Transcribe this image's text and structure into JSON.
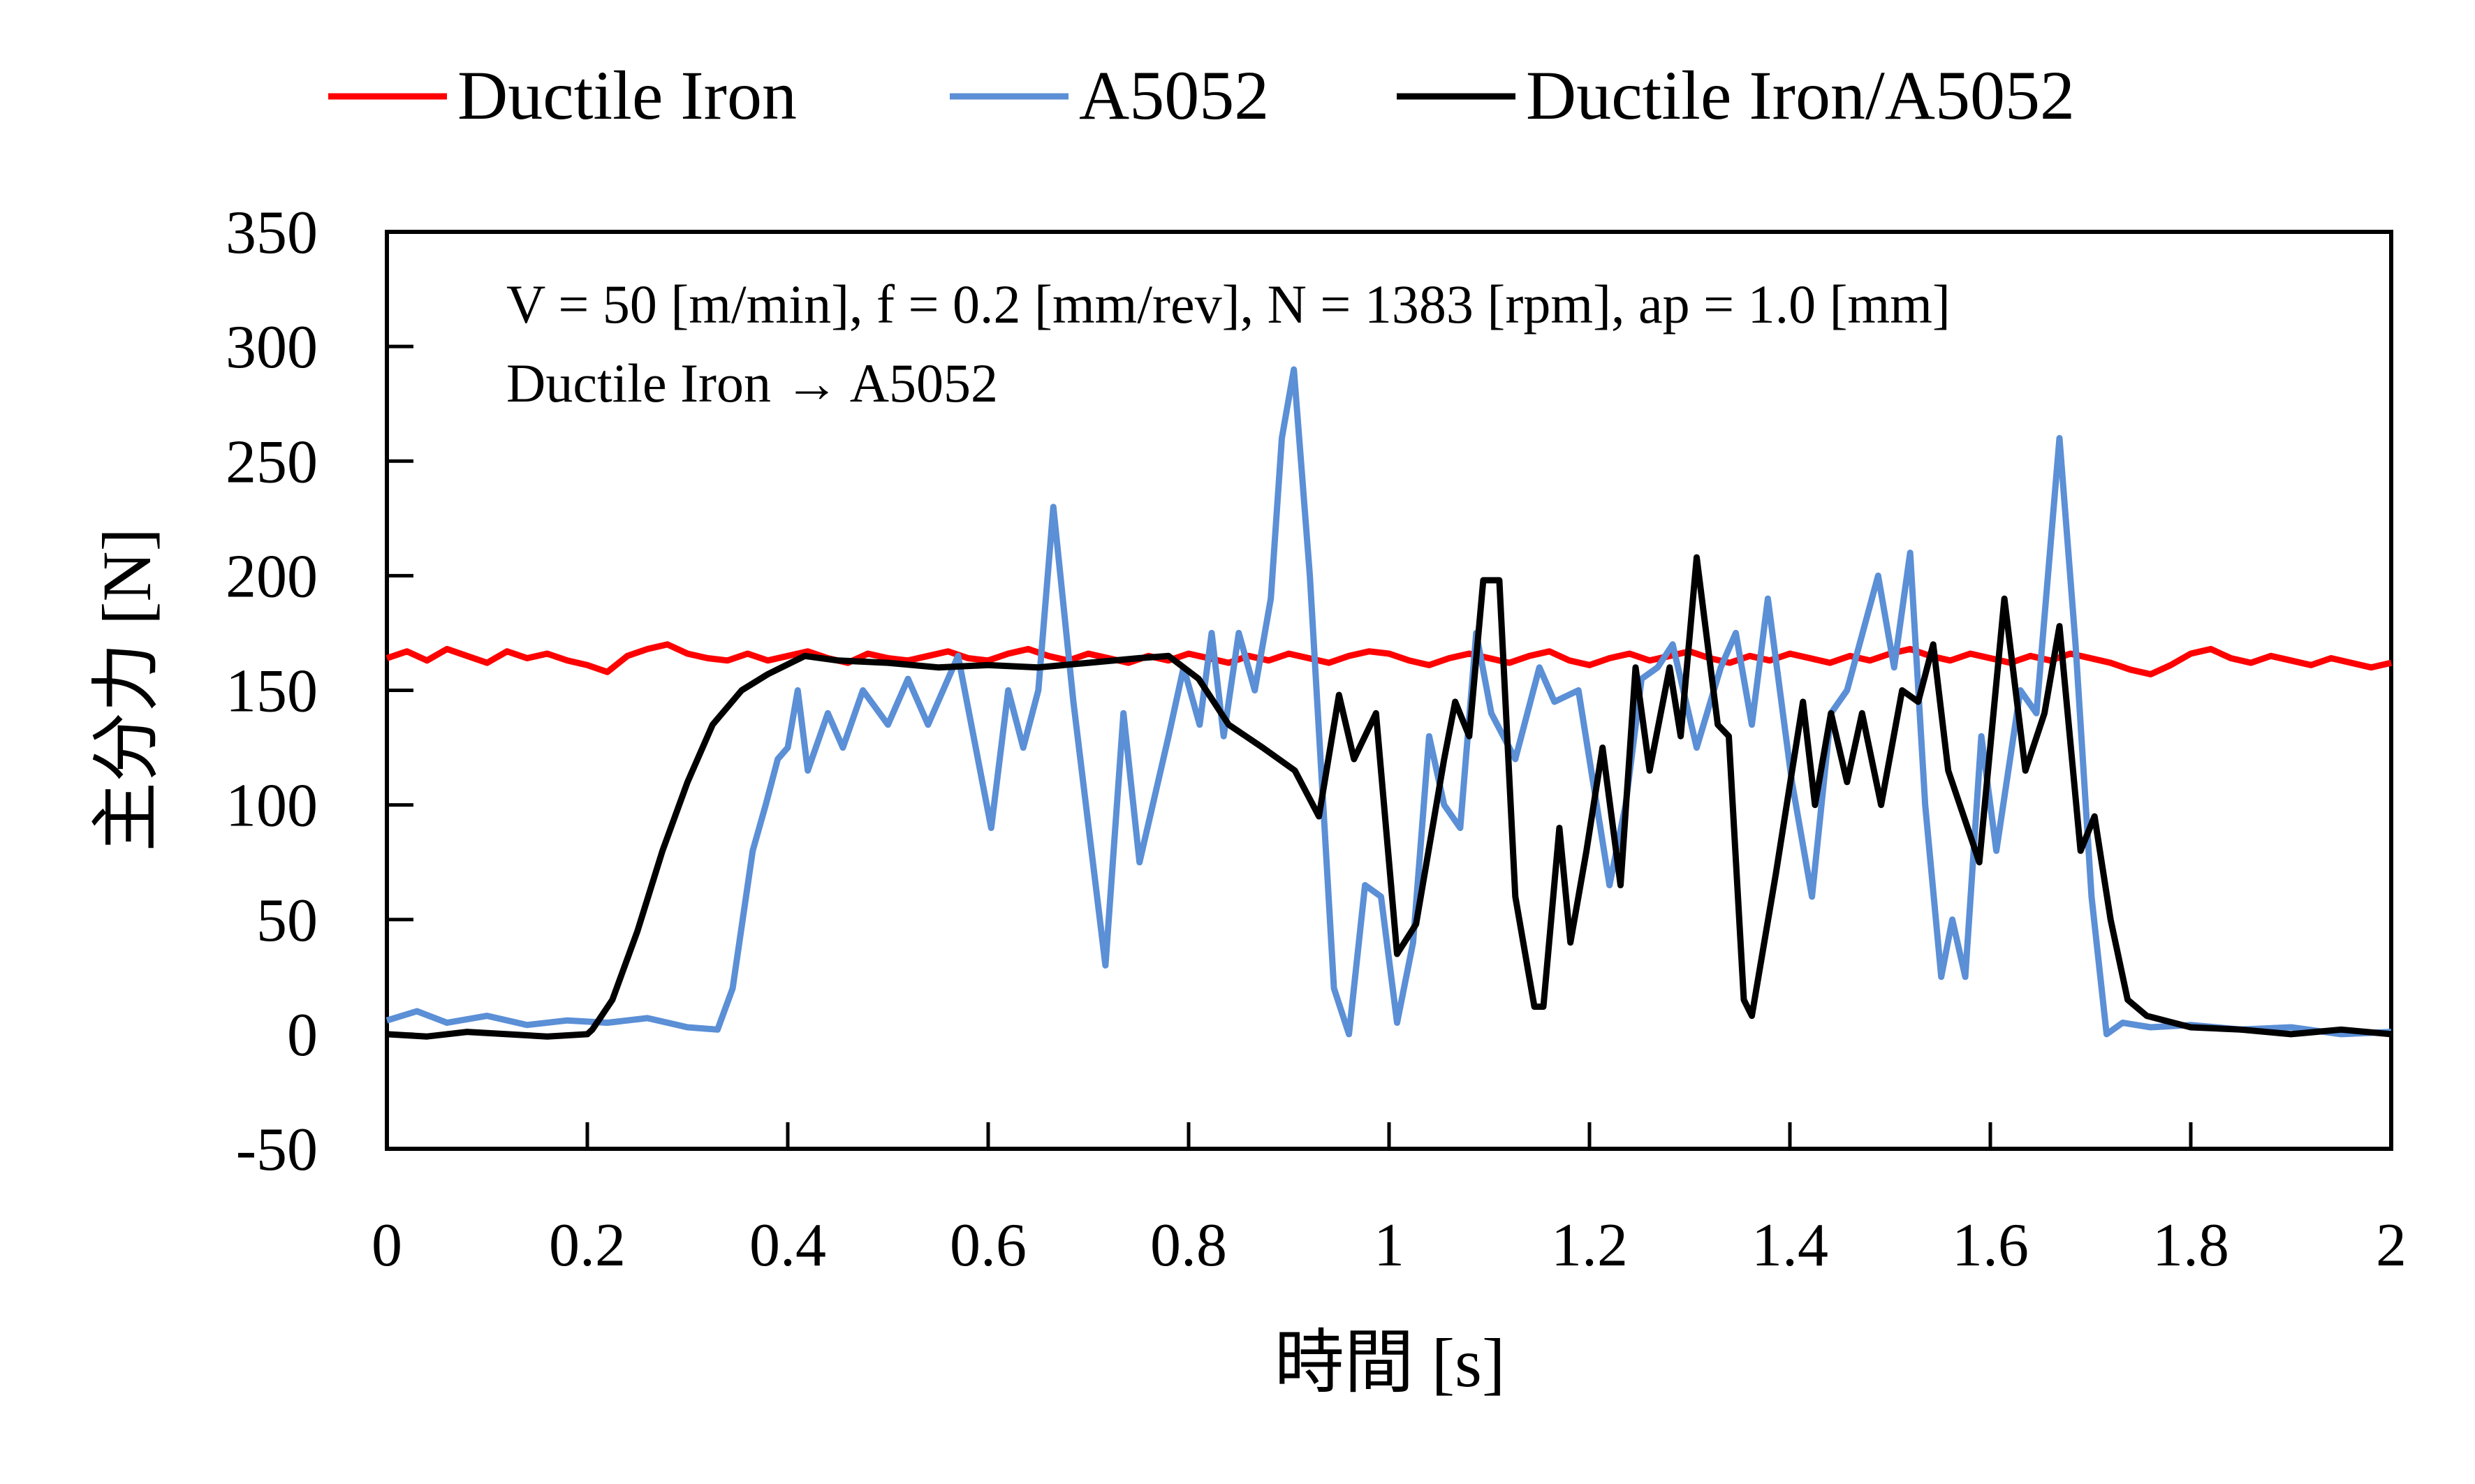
{
  "chart_data": {
    "type": "line",
    "title": "",
    "xlabel": "時間 [s]",
    "ylabel": "主分力 [N]",
    "xlim": [
      0,
      2
    ],
    "ylim": [
      -50,
      350
    ],
    "xticks": [
      "0",
      "0.2",
      "0.4",
      "0.6",
      "0.8",
      "1",
      "1.2",
      "1.4",
      "1.6",
      "1.8",
      "2"
    ],
    "xtick_values": [
      0,
      0.2,
      0.4,
      0.6,
      0.8,
      1,
      1.2,
      1.4,
      1.6,
      1.8,
      2
    ],
    "yticks": [
      "-50",
      "0",
      "50",
      "100",
      "150",
      "200",
      "250",
      "300",
      "350"
    ],
    "ytick_values": [
      -50,
      0,
      50,
      100,
      150,
      200,
      250,
      300,
      350
    ],
    "grid": false,
    "legend_position": "top",
    "annotations": [
      "V = 50 [m/min], f = 0.2 [mm/rev], N = 1383 [rpm],  ap = 1.0 [mm]",
      "Ductile Iron → A5052"
    ],
    "series": [
      {
        "name": "Ductile Iron",
        "color": "#ff0000",
        "points": [
          [
            0,
            164
          ],
          [
            0.02,
            167
          ],
          [
            0.04,
            163
          ],
          [
            0.06,
            168
          ],
          [
            0.08,
            165
          ],
          [
            0.1,
            162
          ],
          [
            0.12,
            167
          ],
          [
            0.14,
            164
          ],
          [
            0.16,
            166
          ],
          [
            0.18,
            163
          ],
          [
            0.2,
            161
          ],
          [
            0.22,
            158
          ],
          [
            0.24,
            165
          ],
          [
            0.26,
            168
          ],
          [
            0.28,
            170
          ],
          [
            0.3,
            166
          ],
          [
            0.32,
            164
          ],
          [
            0.34,
            163
          ],
          [
            0.36,
            166
          ],
          [
            0.38,
            163
          ],
          [
            0.4,
            165
          ],
          [
            0.42,
            167
          ],
          [
            0.44,
            164
          ],
          [
            0.46,
            162
          ],
          [
            0.48,
            166
          ],
          [
            0.5,
            164
          ],
          [
            0.52,
            163
          ],
          [
            0.54,
            165
          ],
          [
            0.56,
            167
          ],
          [
            0.58,
            164
          ],
          [
            0.6,
            163
          ],
          [
            0.62,
            166
          ],
          [
            0.64,
            168
          ],
          [
            0.66,
            165
          ],
          [
            0.68,
            163
          ],
          [
            0.7,
            166
          ],
          [
            0.72,
            164
          ],
          [
            0.74,
            162
          ],
          [
            0.76,
            165
          ],
          [
            0.78,
            163
          ],
          [
            0.8,
            166
          ],
          [
            0.82,
            164
          ],
          [
            0.84,
            162
          ],
          [
            0.86,
            165
          ],
          [
            0.88,
            163
          ],
          [
            0.9,
            166
          ],
          [
            0.92,
            164
          ],
          [
            0.94,
            162
          ],
          [
            0.96,
            165
          ],
          [
            0.98,
            167
          ],
          [
            1.0,
            166
          ],
          [
            1.02,
            163
          ],
          [
            1.04,
            161
          ],
          [
            1.06,
            164
          ],
          [
            1.08,
            166
          ],
          [
            1.1,
            164
          ],
          [
            1.12,
            162
          ],
          [
            1.14,
            165
          ],
          [
            1.16,
            167
          ],
          [
            1.18,
            163
          ],
          [
            1.2,
            161
          ],
          [
            1.22,
            164
          ],
          [
            1.24,
            166
          ],
          [
            1.26,
            163
          ],
          [
            1.28,
            165
          ],
          [
            1.3,
            167
          ],
          [
            1.32,
            164
          ],
          [
            1.34,
            162
          ],
          [
            1.36,
            165
          ],
          [
            1.38,
            163
          ],
          [
            1.4,
            166
          ],
          [
            1.42,
            164
          ],
          [
            1.44,
            162
          ],
          [
            1.46,
            165
          ],
          [
            1.48,
            163
          ],
          [
            1.5,
            166
          ],
          [
            1.52,
            168
          ],
          [
            1.54,
            165
          ],
          [
            1.56,
            163
          ],
          [
            1.58,
            166
          ],
          [
            1.6,
            164
          ],
          [
            1.62,
            162
          ],
          [
            1.64,
            165
          ],
          [
            1.66,
            163
          ],
          [
            1.68,
            166
          ],
          [
            1.7,
            164
          ],
          [
            1.72,
            162
          ],
          [
            1.74,
            159
          ],
          [
            1.76,
            157
          ],
          [
            1.78,
            161
          ],
          [
            1.8,
            166
          ],
          [
            1.82,
            168
          ],
          [
            1.84,
            164
          ],
          [
            1.86,
            162
          ],
          [
            1.88,
            165
          ],
          [
            1.9,
            163
          ],
          [
            1.92,
            161
          ],
          [
            1.94,
            164
          ],
          [
            1.96,
            162
          ],
          [
            1.98,
            160
          ],
          [
            2.0,
            162
          ]
        ]
      },
      {
        "name": "A5052",
        "color": "#5b8fd6",
        "points": [
          [
            0,
            6
          ],
          [
            0.03,
            10
          ],
          [
            0.06,
            5
          ],
          [
            0.1,
            8
          ],
          [
            0.14,
            4
          ],
          [
            0.18,
            6
          ],
          [
            0.22,
            5
          ],
          [
            0.26,
            7
          ],
          [
            0.3,
            3
          ],
          [
            0.33,
            2
          ],
          [
            0.345,
            20
          ],
          [
            0.365,
            80
          ],
          [
            0.378,
            100
          ],
          [
            0.39,
            120
          ],
          [
            0.4,
            125
          ],
          [
            0.41,
            150
          ],
          [
            0.42,
            115
          ],
          [
            0.44,
            140
          ],
          [
            0.455,
            125
          ],
          [
            0.475,
            150
          ],
          [
            0.5,
            135
          ],
          [
            0.52,
            155
          ],
          [
            0.54,
            135
          ],
          [
            0.57,
            165
          ],
          [
            0.603,
            90
          ],
          [
            0.62,
            150
          ],
          [
            0.635,
            125
          ],
          [
            0.65,
            150
          ],
          [
            0.665,
            230
          ],
          [
            0.685,
            145
          ],
          [
            0.717,
            30
          ],
          [
            0.735,
            140
          ],
          [
            0.751,
            75
          ],
          [
            0.78,
            130
          ],
          [
            0.795,
            160
          ],
          [
            0.811,
            135
          ],
          [
            0.823,
            175
          ],
          [
            0.835,
            130
          ],
          [
            0.85,
            175
          ],
          [
            0.866,
            150
          ],
          [
            0.882,
            190
          ],
          [
            0.893,
            260
          ],
          [
            0.905,
            290
          ],
          [
            0.921,
            200
          ],
          [
            0.945,
            20
          ],
          [
            0.96,
            0
          ],
          [
            0.976,
            65
          ],
          [
            0.992,
            60
          ],
          [
            1.008,
            5
          ],
          [
            1.024,
            40
          ],
          [
            1.04,
            130
          ],
          [
            1.055,
            100
          ],
          [
            1.071,
            90
          ],
          [
            1.087,
            175
          ],
          [
            1.102,
            140
          ],
          [
            1.126,
            120
          ],
          [
            1.15,
            160
          ],
          [
            1.165,
            145
          ],
          [
            1.189,
            150
          ],
          [
            1.22,
            65
          ],
          [
            1.236,
            100
          ],
          [
            1.252,
            155
          ],
          [
            1.268,
            160
          ],
          [
            1.283,
            170
          ],
          [
            1.307,
            125
          ],
          [
            1.331,
            160
          ],
          [
            1.346,
            175
          ],
          [
            1.362,
            135
          ],
          [
            1.378,
            190
          ],
          [
            1.402,
            110
          ],
          [
            1.422,
            60
          ],
          [
            1.441,
            140
          ],
          [
            1.457,
            150
          ],
          [
            1.488,
            200
          ],
          [
            1.504,
            160
          ],
          [
            1.52,
            210
          ],
          [
            1.535,
            100
          ],
          [
            1.551,
            25
          ],
          [
            1.562,
            50
          ],
          [
            1.575,
            25
          ],
          [
            1.591,
            130
          ],
          [
            1.606,
            80
          ],
          [
            1.63,
            150
          ],
          [
            1.646,
            140
          ],
          [
            1.669,
            260
          ],
          [
            1.685,
            170
          ],
          [
            1.701,
            60
          ],
          [
            1.716,
            0
          ],
          [
            1.732,
            5
          ],
          [
            1.76,
            3
          ],
          [
            1.8,
            4
          ],
          [
            1.85,
            2
          ],
          [
            1.9,
            3
          ],
          [
            1.95,
            0
          ],
          [
            2.0,
            1
          ]
        ]
      },
      {
        "name": "Ductile Iron/A5052",
        "color": "#000000",
        "points": [
          [
            0,
            0
          ],
          [
            0.04,
            -1
          ],
          [
            0.08,
            1
          ],
          [
            0.12,
            0
          ],
          [
            0.16,
            -1
          ],
          [
            0.2,
            0
          ],
          [
            0.205,
            2
          ],
          [
            0.225,
            15
          ],
          [
            0.25,
            45
          ],
          [
            0.275,
            80
          ],
          [
            0.3,
            110
          ],
          [
            0.325,
            135
          ],
          [
            0.354,
            150
          ],
          [
            0.38,
            157
          ],
          [
            0.417,
            165
          ],
          [
            0.45,
            163
          ],
          [
            0.5,
            162
          ],
          [
            0.55,
            160
          ],
          [
            0.6,
            161
          ],
          [
            0.65,
            160
          ],
          [
            0.7,
            162
          ],
          [
            0.75,
            164
          ],
          [
            0.78,
            165
          ],
          [
            0.81,
            155
          ],
          [
            0.84,
            135
          ],
          [
            0.874,
            125
          ],
          [
            0.906,
            115
          ],
          [
            0.93,
            95
          ],
          [
            0.95,
            148
          ],
          [
            0.965,
            120
          ],
          [
            0.987,
            140
          ],
          [
            1.008,
            35
          ],
          [
            1.027,
            48
          ],
          [
            1.055,
            120
          ],
          [
            1.066,
            145
          ],
          [
            1.08,
            130
          ],
          [
            1.094,
            198
          ],
          [
            1.11,
            198
          ],
          [
            1.126,
            60
          ],
          [
            1.145,
            12
          ],
          [
            1.154,
            12
          ],
          [
            1.17,
            90
          ],
          [
            1.181,
            40
          ],
          [
            1.197,
            80
          ],
          [
            1.213,
            125
          ],
          [
            1.231,
            65
          ],
          [
            1.246,
            160
          ],
          [
            1.26,
            115
          ],
          [
            1.28,
            160
          ],
          [
            1.291,
            130
          ],
          [
            1.307,
            208
          ],
          [
            1.328,
            135
          ],
          [
            1.339,
            130
          ],
          [
            1.354,
            15
          ],
          [
            1.362,
            8
          ],
          [
            1.386,
            70
          ],
          [
            1.413,
            145
          ],
          [
            1.425,
            100
          ],
          [
            1.441,
            140
          ],
          [
            1.457,
            110
          ],
          [
            1.472,
            140
          ],
          [
            1.491,
            100
          ],
          [
            1.512,
            150
          ],
          [
            1.528,
            145
          ],
          [
            1.543,
            170
          ],
          [
            1.558,
            115
          ],
          [
            1.589,
            75
          ],
          [
            1.614,
            190
          ],
          [
            1.635,
            115
          ],
          [
            1.654,
            140
          ],
          [
            1.669,
            178
          ],
          [
            1.69,
            80
          ],
          [
            1.704,
            95
          ],
          [
            1.72,
            50
          ],
          [
            1.737,
            15
          ],
          [
            1.756,
            8
          ],
          [
            1.8,
            3
          ],
          [
            1.85,
            2
          ],
          [
            1.9,
            0
          ],
          [
            1.95,
            2
          ],
          [
            2.0,
            0
          ]
        ]
      }
    ]
  }
}
